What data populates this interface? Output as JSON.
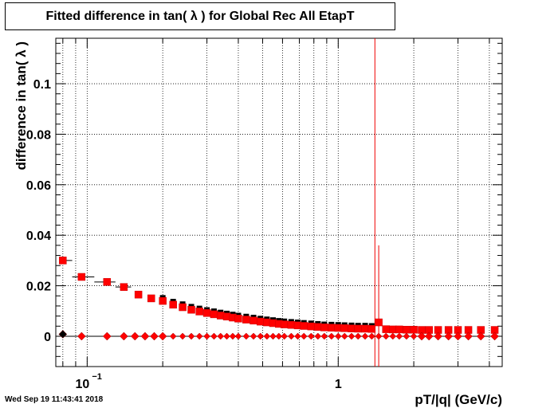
{
  "title": "Fitted difference in tan( λ ) for Global Rec All EtapT",
  "timestamp": "Wed Sep 19 11:43:41 2018",
  "chart_data": {
    "type": "scatter",
    "title": "Fitted difference in tan( λ ) for Global Rec All EtapT",
    "xlabel": "pT/|q| (GeV/c)",
    "ylabel": "difference in tan( λ )",
    "x_scale": "log",
    "xlim": [
      0.075,
      4.5
    ],
    "ylim": [
      -0.012,
      0.118
    ],
    "grid": true,
    "x_major_ticks": [
      {
        "value": 0.1,
        "label": "10",
        "exponent": "−1"
      },
      {
        "value": 1,
        "label": "1",
        "exponent": ""
      }
    ],
    "y_ticks": [
      0,
      0.02,
      0.04,
      0.06,
      0.08,
      0.1
    ],
    "y_tick_labels": [
      "0",
      "0.02",
      "0.04",
      "0.06",
      "0.08",
      "0.1"
    ],
    "colors": {
      "mean": "#ee0000",
      "sigma_black": "#000000",
      "marker_red": "#ff0000"
    },
    "series": [
      {
        "marker": "square",
        "color": "#ee0000",
        "points": [
          [
            0.08,
            0.03
          ],
          [
            0.095,
            0.0235
          ],
          [
            0.12,
            0.0215
          ],
          [
            0.14,
            0.0195
          ],
          [
            0.16,
            0.0165
          ],
          [
            0.18,
            0.015
          ],
          [
            0.2,
            0.014
          ],
          [
            0.22,
            0.0125
          ],
          [
            0.24,
            0.0115
          ],
          [
            0.26,
            0.0105
          ],
          [
            0.28,
            0.0098
          ],
          [
            0.3,
            0.0092
          ],
          [
            0.32,
            0.0087
          ],
          [
            0.34,
            0.0082
          ],
          [
            0.36,
            0.0078
          ],
          [
            0.38,
            0.0074
          ],
          [
            0.4,
            0.007
          ],
          [
            0.43,
            0.0066
          ],
          [
            0.46,
            0.0062
          ],
          [
            0.49,
            0.0058
          ],
          [
            0.52,
            0.0055
          ],
          [
            0.55,
            0.0052
          ],
          [
            0.58,
            0.0049
          ],
          [
            0.61,
            0.0047
          ],
          [
            0.65,
            0.0045
          ],
          [
            0.69,
            0.0043
          ],
          [
            0.73,
            0.0041
          ],
          [
            0.78,
            0.0039
          ],
          [
            0.83,
            0.0037
          ],
          [
            0.88,
            0.0035
          ],
          [
            0.94,
            0.0034
          ],
          [
            1.0,
            0.0033
          ],
          [
            1.06,
            0.0032
          ],
          [
            1.13,
            0.0031
          ],
          [
            1.2,
            0.003
          ],
          [
            1.28,
            0.003
          ],
          [
            1.36,
            0.0029
          ],
          [
            1.45,
            0.0055
          ],
          [
            1.55,
            0.0028
          ],
          [
            1.65,
            0.0027
          ],
          [
            1.75,
            0.0027
          ],
          [
            1.87,
            0.0026
          ],
          [
            2.0,
            0.0026
          ],
          [
            2.15,
            0.0025
          ],
          [
            2.3,
            0.0025
          ],
          [
            2.5,
            0.0025
          ],
          [
            2.75,
            0.0025
          ],
          [
            3.0,
            0.0025
          ],
          [
            3.3,
            0.0025
          ],
          [
            3.7,
            0.0025
          ],
          [
            4.2,
            0.0025
          ]
        ]
      },
      {
        "marker": "diamond",
        "color": "#ee0000",
        "points": [
          [
            0.08,
            0.0008
          ],
          [
            0.095,
            0.0
          ],
          [
            0.12,
            0.0
          ],
          [
            0.14,
            0.0
          ],
          [
            0.155,
            0.0
          ],
          [
            0.17,
            0.0
          ],
          [
            0.185,
            0.0
          ],
          [
            0.2,
            0.0
          ],
          [
            0.22,
            0.0
          ],
          [
            0.24,
            0.0
          ],
          [
            0.26,
            0.0
          ],
          [
            0.28,
            0.0
          ],
          [
            0.3,
            0.0
          ],
          [
            0.32,
            0.0
          ],
          [
            0.34,
            0.0
          ],
          [
            0.36,
            0.0
          ],
          [
            0.38,
            0.0
          ],
          [
            0.4,
            0.0
          ],
          [
            0.43,
            0.0
          ],
          [
            0.46,
            0.0
          ],
          [
            0.49,
            0.0
          ],
          [
            0.52,
            0.0
          ],
          [
            0.55,
            0.0
          ],
          [
            0.58,
            0.0
          ],
          [
            0.61,
            0.0
          ],
          [
            0.65,
            0.0
          ],
          [
            0.69,
            0.0
          ],
          [
            0.73,
            0.0
          ],
          [
            0.78,
            0.0
          ],
          [
            0.83,
            0.0
          ],
          [
            0.88,
            0.0
          ],
          [
            0.94,
            0.0
          ],
          [
            1.0,
            0.0
          ],
          [
            1.06,
            0.0
          ],
          [
            1.13,
            0.0
          ],
          [
            1.2,
            0.0
          ],
          [
            1.28,
            0.0
          ],
          [
            1.36,
            0.0
          ],
          [
            1.45,
            0.0
          ],
          [
            1.55,
            0.0
          ],
          [
            1.65,
            0.0
          ],
          [
            1.75,
            0.0
          ],
          [
            1.87,
            0.0
          ],
          [
            2.0,
            0.0
          ],
          [
            2.15,
            0.0
          ],
          [
            2.3,
            0.0
          ],
          [
            2.5,
            0.0
          ],
          [
            2.75,
            0.0
          ],
          [
            3.0,
            0.0
          ],
          [
            3.3,
            0.0
          ],
          [
            3.7,
            0.0
          ],
          [
            4.2,
            0.0
          ]
        ]
      }
    ]
  }
}
